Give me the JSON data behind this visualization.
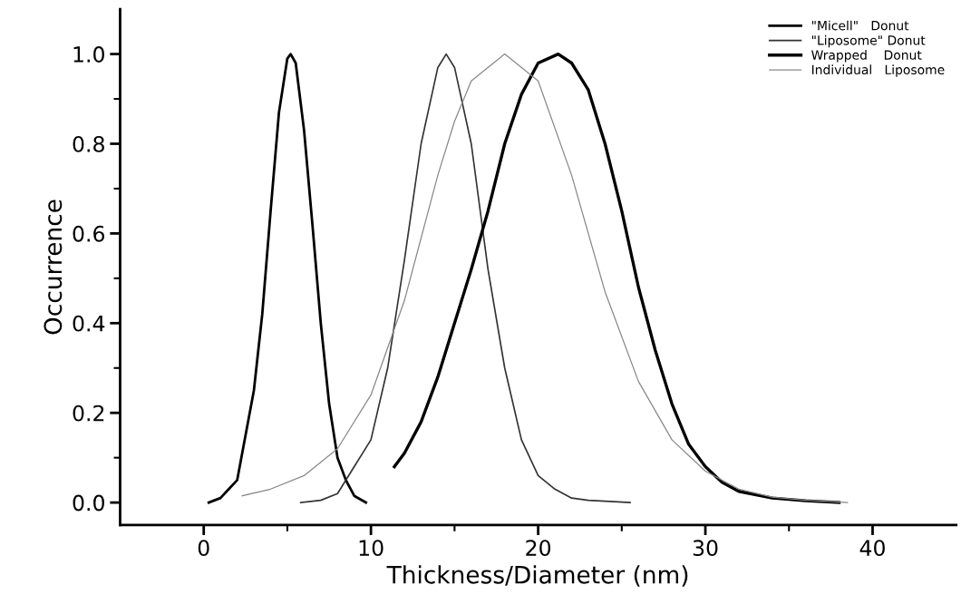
{
  "chart_data": {
    "type": "line",
    "xlabel": "Thickness/Diameter (nm)",
    "ylabel": "Occurrence",
    "xlim": [
      -5,
      45
    ],
    "ylim": [
      -0.05,
      1.1
    ],
    "xticks": [
      0,
      10,
      20,
      30,
      40,
      {
        "value": 5,
        "label": null
      },
      {
        "value": 15,
        "label": null
      },
      {
        "value": 25,
        "label": null
      },
      {
        "value": 35,
        "label": null
      }
    ],
    "yticks": [
      {
        "value": 0.0,
        "label": "0.0"
      },
      {
        "value": 0.2,
        "label": "0.2"
      },
      {
        "value": 0.4,
        "label": "0.4"
      },
      {
        "value": 0.6,
        "label": "0.6"
      },
      {
        "value": 0.8,
        "label": "0.8"
      },
      {
        "value": 1.0,
        "label": "1.0"
      },
      {
        "value": 0.1,
        "label": null
      },
      {
        "value": 0.3,
        "label": null
      },
      {
        "value": 0.5,
        "label": null
      },
      {
        "value": 0.7,
        "label": null
      },
      {
        "value": 0.9,
        "label": null
      }
    ],
    "grid": false,
    "legend": "top right",
    "marker": "none",
    "line_style": "solid",
    "series": [
      {
        "name": "\"Micell\"   Donut",
        "color": "#000000",
        "x": [
          0.3,
          1,
          2,
          3,
          3.5,
          4,
          4.5,
          5,
          5.2,
          5.5,
          6,
          6.5,
          7,
          7.5,
          8,
          8.5,
          9,
          9.7
        ],
        "values": [
          0.0,
          0.01,
          0.05,
          0.25,
          0.42,
          0.65,
          0.87,
          0.99,
          1.0,
          0.98,
          0.83,
          0.62,
          0.4,
          0.22,
          0.1,
          0.05,
          0.015,
          0.0
        ]
      },
      {
        "name": "\"Liposome\" Donut",
        "color": "#333333",
        "x": [
          5.8,
          7,
          8,
          9,
          10,
          11,
          12,
          13,
          14,
          14.5,
          15,
          16,
          17,
          18,
          19,
          20,
          21,
          22,
          23,
          25.5
        ],
        "values": [
          0.0,
          0.005,
          0.02,
          0.08,
          0.14,
          0.3,
          0.54,
          0.8,
          0.97,
          1.0,
          0.97,
          0.8,
          0.52,
          0.3,
          0.14,
          0.06,
          0.03,
          0.01,
          0.005,
          0.0
        ]
      },
      {
        "name": "Wrapped    Donut",
        "color": "#000000",
        "x": [
          11.4,
          12,
          13,
          14,
          15,
          16,
          17,
          18,
          19,
          20,
          21.2,
          22,
          23,
          24,
          25,
          26,
          27,
          28,
          29,
          30,
          31,
          32,
          34,
          36,
          38
        ],
        "values": [
          0.08,
          0.11,
          0.18,
          0.28,
          0.4,
          0.52,
          0.65,
          0.8,
          0.91,
          0.98,
          1.0,
          0.98,
          0.92,
          0.8,
          0.65,
          0.48,
          0.34,
          0.22,
          0.13,
          0.08,
          0.045,
          0.025,
          0.01,
          0.004,
          0.0
        ]
      },
      {
        "name": "Individual   Liposome",
        "color": "#888888",
        "x": [
          2.3,
          4,
          6,
          8,
          10,
          12,
          14,
          15,
          16,
          18,
          20,
          22,
          24,
          26,
          28,
          30,
          32,
          34,
          36,
          38.5
        ],
        "values": [
          0.015,
          0.03,
          0.06,
          0.12,
          0.24,
          0.45,
          0.73,
          0.85,
          0.94,
          1.0,
          0.94,
          0.73,
          0.47,
          0.27,
          0.14,
          0.07,
          0.03,
          0.012,
          0.005,
          0.0
        ]
      }
    ]
  }
}
